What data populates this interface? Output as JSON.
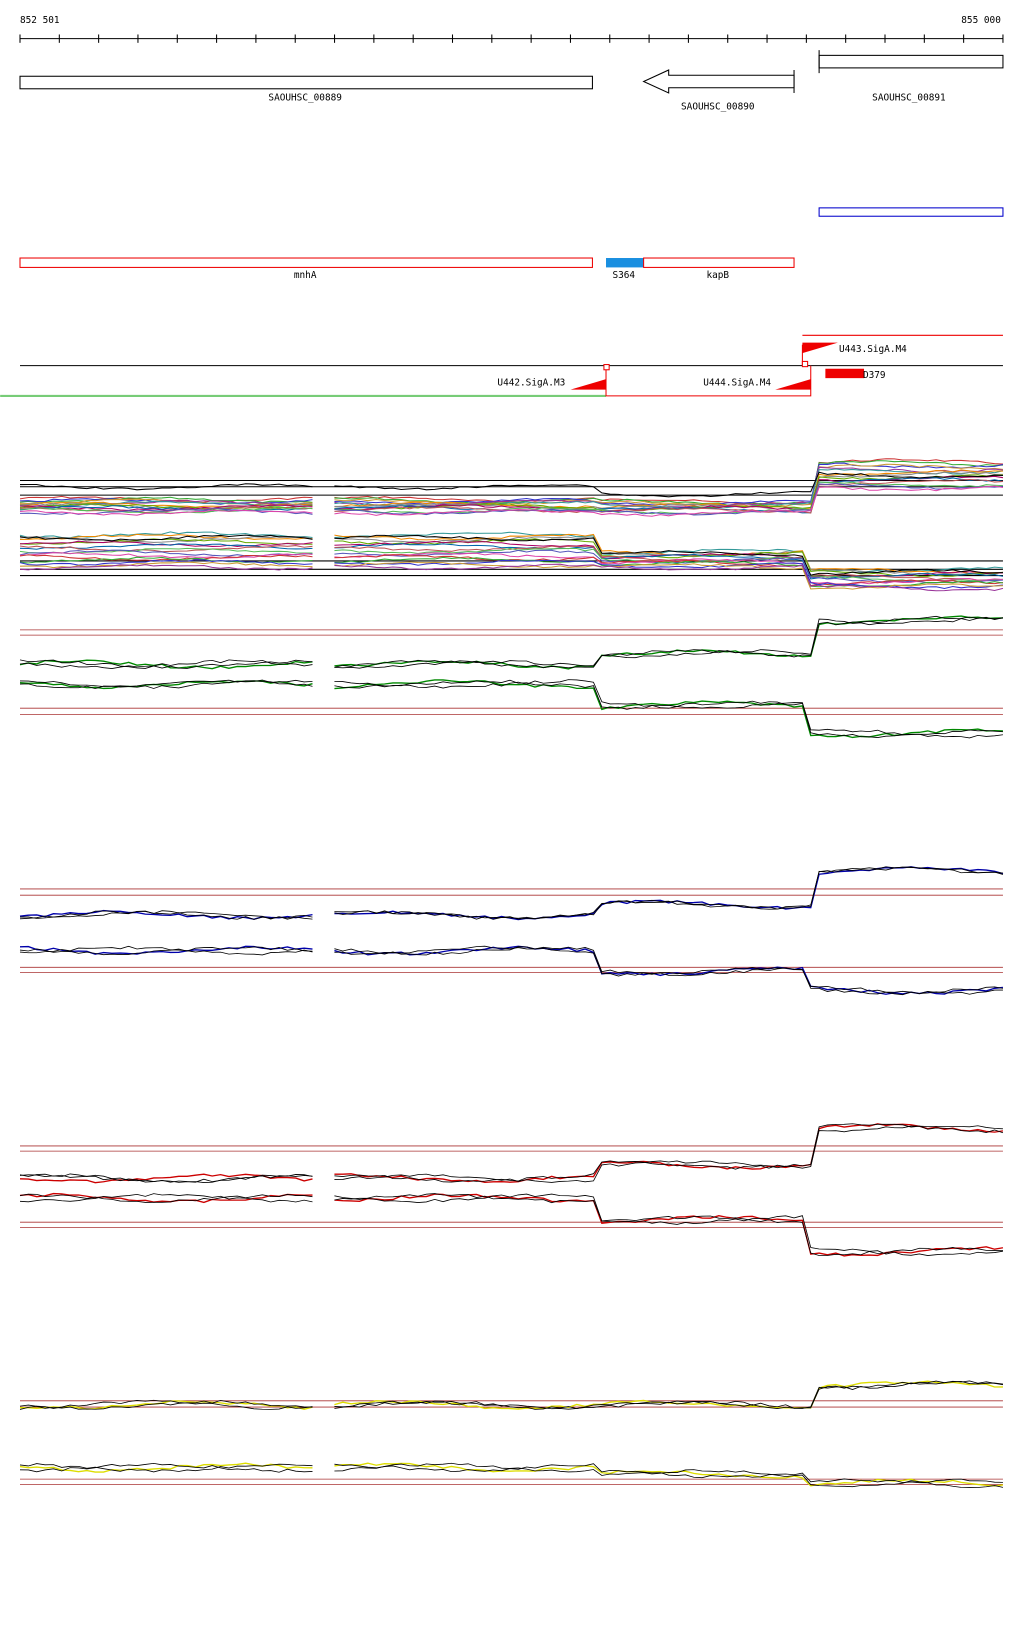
{
  "ruler": {
    "start": "852 501",
    "end": "855 000"
  },
  "genes": [
    {
      "label": "SAOUHSC_00889"
    },
    {
      "label": "SAOUHSC_00890"
    },
    {
      "label": "SAOUHSC_00891"
    }
  ],
  "features": [
    {
      "label": "mnhA"
    },
    {
      "label": "S364"
    },
    {
      "label": "kapB"
    }
  ],
  "promoters": [
    {
      "label": "U443.SigA.M4"
    },
    {
      "label": "U442.SigA.M3"
    },
    {
      "label": "U444.SigA.M4"
    },
    {
      "label": "D379"
    }
  ]
}
